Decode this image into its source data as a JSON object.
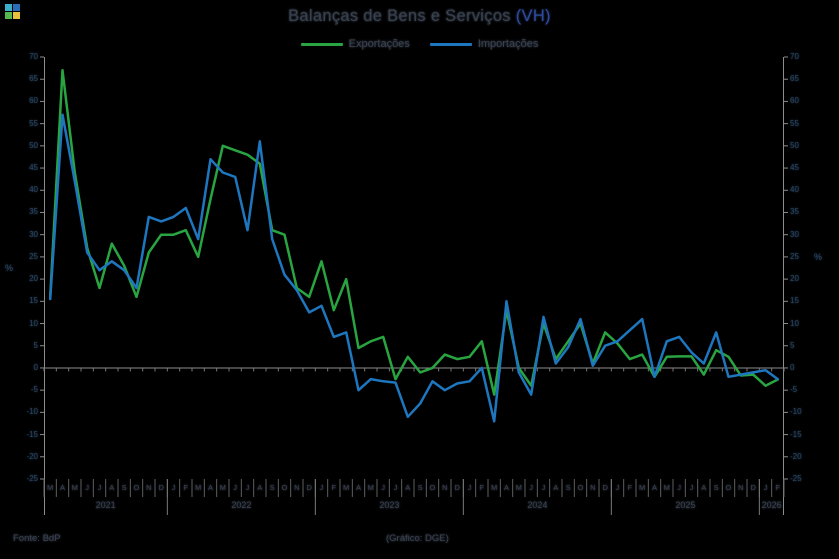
{
  "window": {
    "logo_colors": [
      "#3DAEC9",
      "#2B6CB8",
      "#53B94E",
      "#E8C23A"
    ]
  },
  "header": {
    "title_main": "Balanças de Bens e Serviços",
    "title_suffix": " (VH)"
  },
  "footer": {
    "source": "Fonte: BdP",
    "credit": "(Gráfico: DGE)"
  },
  "chart_data": {
    "type": "line",
    "title": "Balanças de Bens e Serviços (VH)",
    "ylabel_left": "%",
    "ylabel_right": "%",
    "ylim": [
      -25,
      70
    ],
    "ytick_step": 5,
    "yticks": [
      70,
      65,
      60,
      55,
      50,
      45,
      40,
      35,
      30,
      25,
      20,
      15,
      10,
      5,
      0,
      -5,
      -10,
      -15,
      -20,
      -25
    ],
    "grid": false,
    "legend_position": "top-center",
    "axis_color": "#8c8c8c",
    "x_months": [
      "M",
      "A",
      "M",
      "J",
      "J",
      "A",
      "S",
      "O",
      "N",
      "D",
      "J",
      "F",
      "M",
      "A",
      "M",
      "J",
      "J",
      "A",
      "S",
      "O",
      "N",
      "D",
      "J",
      "F",
      "M",
      "A",
      "M",
      "J",
      "J",
      "A",
      "S",
      "O",
      "N",
      "D",
      "J",
      "F",
      "M",
      "A",
      "M",
      "J",
      "J",
      "A",
      "S",
      "O",
      "N",
      "D",
      "J",
      "F",
      "M",
      "A",
      "M",
      "J",
      "J",
      "A",
      "S",
      "O",
      "N",
      "D",
      "J",
      "F"
    ],
    "year_groups": [
      {
        "label": "2021",
        "span": 10
      },
      {
        "label": "2022",
        "span": 12
      },
      {
        "label": "2023",
        "span": 12
      },
      {
        "label": "2024",
        "span": 12
      },
      {
        "label": "2025",
        "span": 12
      },
      {
        "label": "2026",
        "span": 2
      }
    ],
    "series": [
      {
        "name": "Exportações",
        "color": "#28A541",
        "values": [
          16,
          67,
          44,
          27,
          18,
          28,
          23,
          16,
          26,
          30,
          30,
          31,
          25,
          38,
          50,
          49,
          48,
          46,
          31,
          30,
          18,
          16,
          24,
          13,
          20,
          4.5,
          6,
          7,
          -2.5,
          2.5,
          -1,
          0,
          3,
          2,
          2.5,
          6,
          -6,
          13,
          0,
          -4,
          10,
          2,
          6,
          10,
          1,
          8,
          5.5,
          2,
          3,
          -2,
          2.5,
          2.6,
          2.6,
          -1.5,
          4,
          2.5,
          -1.7,
          -1.5,
          -4,
          -2.6
        ]
      },
      {
        "name": "Importações",
        "color": "#1E76BE",
        "values": [
          15.5,
          57,
          42,
          26,
          22,
          24,
          22,
          18,
          34,
          33,
          34,
          36,
          29,
          47,
          44,
          43,
          31,
          51,
          29,
          21,
          17.5,
          12.5,
          14,
          7,
          8,
          -5,
          -2.5,
          -3,
          -3.3,
          -11,
          -8,
          -3,
          -5,
          -3.5,
          -3,
          0,
          -12,
          15,
          -1,
          -6,
          11.5,
          1,
          4.7,
          11,
          0.5,
          5,
          6,
          8.5,
          11,
          -2,
          6,
          7,
          3.5,
          1,
          8,
          -2,
          -1.5,
          -1,
          -0.5,
          -2.5
        ]
      }
    ]
  }
}
